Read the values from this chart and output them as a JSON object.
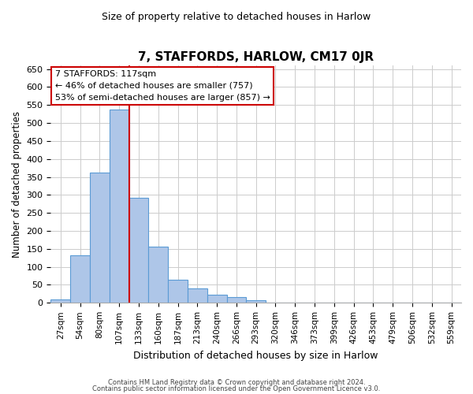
{
  "title": "7, STAFFORDS, HARLOW, CM17 0JR",
  "subtitle": "Size of property relative to detached houses in Harlow",
  "xlabel": "Distribution of detached houses by size in Harlow",
  "ylabel": "Number of detached properties",
  "bar_color": "#aec6e8",
  "bar_edge_color": "#5b9bd5",
  "categories": [
    "27sqm",
    "54sqm",
    "80sqm",
    "107sqm",
    "133sqm",
    "160sqm",
    "187sqm",
    "213sqm",
    "240sqm",
    "266sqm",
    "293sqm",
    "320sqm",
    "346sqm",
    "373sqm",
    "399sqm",
    "426sqm",
    "453sqm",
    "479sqm",
    "506sqm",
    "532sqm",
    "559sqm"
  ],
  "values": [
    10,
    133,
    362,
    537,
    292,
    157,
    65,
    40,
    22,
    15,
    8,
    0,
    0,
    0,
    0,
    0,
    1,
    0,
    0,
    0,
    1
  ],
  "vline_x": 3.5,
  "vline_color": "#cc0000",
  "annotation_text": "7 STAFFORDS: 117sqm\n← 46% of detached houses are smaller (757)\n53% of semi-detached houses are larger (857) →",
  "annotation_box_color": "white",
  "annotation_box_edge_color": "#cc0000",
  "ylim": [
    0,
    660
  ],
  "yticks": [
    0,
    50,
    100,
    150,
    200,
    250,
    300,
    350,
    400,
    450,
    500,
    550,
    600,
    650
  ],
  "footer_line1": "Contains HM Land Registry data © Crown copyright and database right 2024.",
  "footer_line2": "Contains public sector information licensed under the Open Government Licence v3.0.",
  "background_color": "#ffffff",
  "grid_color": "#cccccc"
}
